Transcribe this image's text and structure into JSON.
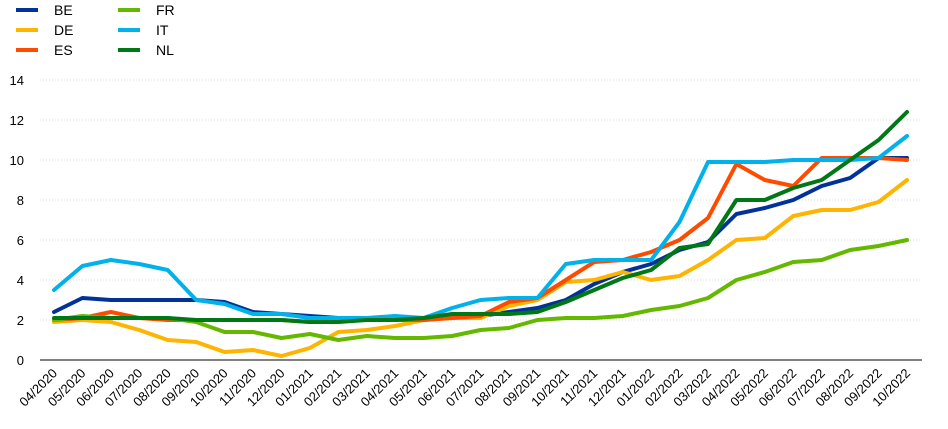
{
  "chart_data": {
    "type": "line",
    "title": "",
    "xlabel": "",
    "ylabel": "",
    "ylim": [
      0,
      14
    ],
    "yticks": [
      0,
      2,
      4,
      6,
      8,
      10,
      12,
      14
    ],
    "grid": "horizontal",
    "legend_position": "top-left",
    "x": [
      "04/2020",
      "05/2020",
      "06/2020",
      "07/2020",
      "08/2020",
      "09/2020",
      "10/2020",
      "11/2020",
      "12/2020",
      "01/2021",
      "02/2021",
      "03/2021",
      "04/2021",
      "05/2021",
      "06/2021",
      "07/2021",
      "08/2021",
      "09/2021",
      "10/2021",
      "11/2021",
      "12/2021",
      "01/2022",
      "02/2022",
      "03/2022",
      "04/2022",
      "05/2022",
      "06/2022",
      "07/2022",
      "08/2022",
      "09/2022",
      "10/2022"
    ],
    "series": [
      {
        "name": "BE",
        "color": "#003299",
        "values": [
          2.4,
          3.1,
          3.0,
          3.0,
          3.0,
          3.0,
          2.9,
          2.4,
          2.3,
          2.2,
          2.1,
          2.1,
          2.1,
          2.1,
          2.2,
          2.2,
          2.4,
          2.6,
          3.0,
          3.8,
          4.4,
          4.8,
          5.5,
          5.9,
          7.3,
          7.6,
          8.0,
          8.7,
          9.1,
          10.1,
          10.1
        ]
      },
      {
        "name": "DE",
        "color": "#FFB400",
        "values": [
          1.9,
          2.0,
          1.9,
          1.5,
          1.0,
          0.9,
          0.4,
          0.5,
          0.2,
          0.6,
          1.4,
          1.5,
          1.7,
          2.0,
          2.1,
          2.1,
          2.7,
          3.0,
          3.9,
          4.0,
          4.4,
          4.0,
          4.2,
          5.0,
          6.0,
          6.1,
          7.2,
          7.5,
          7.5,
          7.9,
          9.0
        ]
      },
      {
        "name": "ES",
        "color": "#FF4B00",
        "values": [
          2.0,
          2.1,
          2.4,
          2.1,
          2.0,
          2.0,
          2.0,
          2.0,
          2.0,
          1.9,
          2.0,
          2.0,
          2.0,
          2.0,
          2.1,
          2.2,
          2.9,
          3.1,
          4.0,
          4.9,
          5.0,
          5.4,
          6.0,
          7.1,
          9.8,
          9.0,
          8.7,
          10.1,
          10.1,
          10.1,
          10.0
        ]
      },
      {
        "name": "FR",
        "color": "#65B800",
        "values": [
          2.0,
          2.2,
          2.1,
          2.1,
          2.1,
          1.9,
          1.4,
          1.4,
          1.1,
          1.3,
          1.0,
          1.2,
          1.1,
          1.1,
          1.2,
          1.5,
          1.6,
          2.0,
          2.1,
          2.1,
          2.2,
          2.5,
          2.7,
          3.1,
          4.0,
          4.4,
          4.9,
          5.0,
          5.5,
          5.7,
          6.0
        ]
      },
      {
        "name": "IT",
        "color": "#00B1EA",
        "values": [
          3.5,
          4.7,
          5.0,
          4.8,
          4.5,
          3.0,
          2.8,
          2.3,
          2.3,
          2.1,
          2.1,
          2.1,
          2.2,
          2.1,
          2.6,
          3.0,
          3.1,
          3.1,
          4.8,
          5.0,
          5.0,
          5.0,
          6.9,
          9.9,
          9.9,
          9.9,
          10.0,
          10.0,
          10.0,
          10.1,
          11.2
        ]
      },
      {
        "name": "NL",
        "color": "#007816",
        "values": [
          2.1,
          2.1,
          2.1,
          2.1,
          2.1,
          2.0,
          2.0,
          2.0,
          2.0,
          1.9,
          1.9,
          2.0,
          2.0,
          2.1,
          2.3,
          2.3,
          2.3,
          2.4,
          2.9,
          3.5,
          4.1,
          4.5,
          5.6,
          5.8,
          8.0,
          8.0,
          8.6,
          9.0,
          10.0,
          11.0,
          12.4
        ]
      }
    ]
  }
}
